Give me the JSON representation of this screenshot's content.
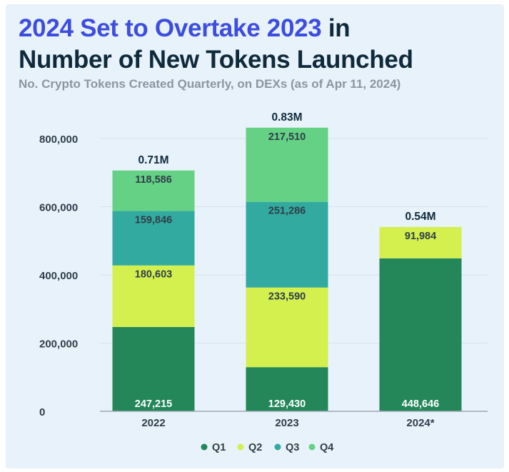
{
  "header": {
    "title_highlight": "2024 Set to Overtake 2023",
    "title_rest_1": " in",
    "title_line2": "Number of New Tokens Launched",
    "subtitle": "No. Crypto Tokens Created Quarterly, on DEXs (as of Apr 11, 2024)"
  },
  "colors": {
    "background": "#e8f2fb",
    "title_highlight": "#3d4de0",
    "title": "#0e2a3b",
    "subtitle": "#8c96a0"
  },
  "chart_data": {
    "type": "bar",
    "stacked": true,
    "categories": [
      "2022",
      "2023",
      "2024*"
    ],
    "series": [
      {
        "name": "Q1",
        "color": "#23875a",
        "values": [
          247215,
          129430,
          448646
        ],
        "labels": [
          "247,215",
          "129,430",
          "448,646"
        ]
      },
      {
        "name": "Q2",
        "color": "#d4f04e",
        "values": [
          180603,
          233590,
          91984
        ],
        "labels": [
          "180,603",
          "233,590",
          "91,984"
        ]
      },
      {
        "name": "Q3",
        "color": "#33aaa0",
        "values": [
          159846,
          251286,
          null
        ],
        "labels": [
          "159,846",
          "251,286",
          ""
        ]
      },
      {
        "name": "Q4",
        "color": "#64d184",
        "values": [
          118586,
          217510,
          null
        ],
        "labels": [
          "118,586",
          "217,510",
          ""
        ]
      }
    ],
    "totals": [
      "0.71M",
      "0.83M",
      "0.54M"
    ],
    "y_ticks": [
      0,
      200000,
      400000,
      600000,
      800000
    ],
    "y_tick_labels": [
      "0",
      "200,000",
      "400,000",
      "600,000",
      "800,000"
    ],
    "ylim": [
      0,
      800000
    ],
    "grid": true,
    "legend_position": "bottom-center"
  }
}
